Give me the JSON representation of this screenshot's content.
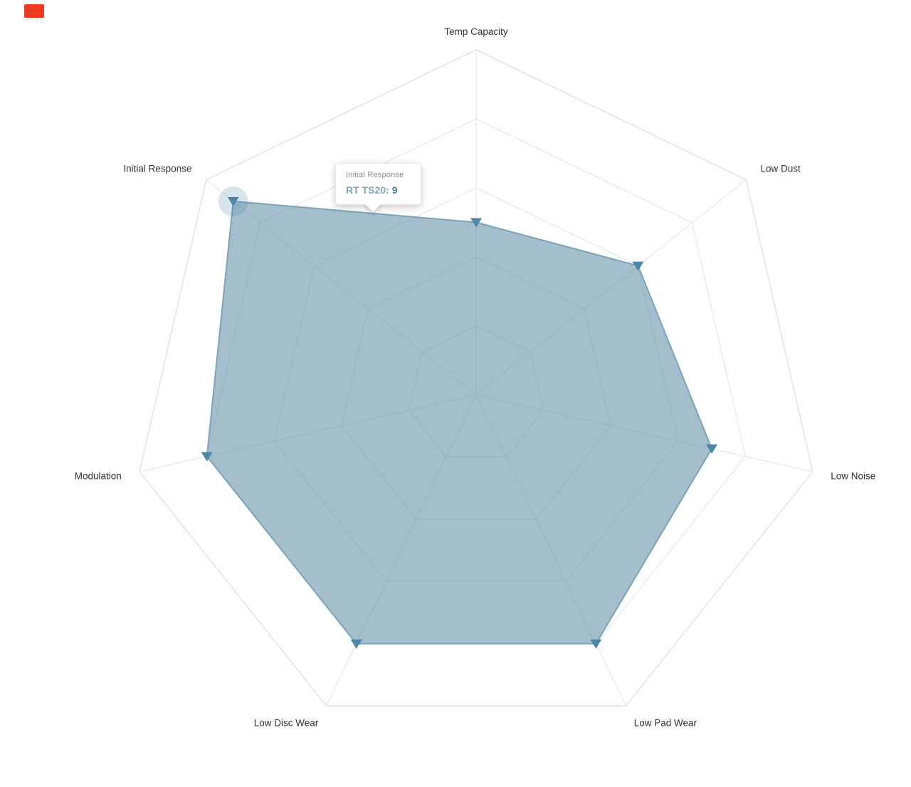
{
  "chart_data": {
    "type": "radar",
    "title": "",
    "categories": [
      "Temp Capacity",
      "Low Dust",
      "Low Noise",
      "Low Pad Wear",
      "Low Disc Wear",
      "Modulation",
      "Initial Response"
    ],
    "series": [
      {
        "name": "RT TS20",
        "values": [
          5,
          6,
          7,
          8,
          8,
          8,
          9
        ]
      }
    ],
    "max": 10,
    "grid_levels": [
      2,
      4,
      6,
      8,
      10
    ],
    "grid": true,
    "legend_position": "none",
    "highlighted_point": {
      "axis": "Initial Response",
      "series": "RT TS20",
      "value": 9
    },
    "colors": {
      "fill": "rgba(108,150,171,0.62)",
      "stroke": "#7aa4ba",
      "marker": "#4d87a7",
      "halo": "rgba(77,135,167,0.22)",
      "grid_line": "#e2e2e8",
      "outer_line": "#d6d6dc",
      "label": "#333333"
    }
  },
  "tooltip": {
    "title": "Initial Response",
    "series_text": "RT TS20:",
    "value": "9"
  },
  "indicator": {
    "color": "#f23a21"
  }
}
